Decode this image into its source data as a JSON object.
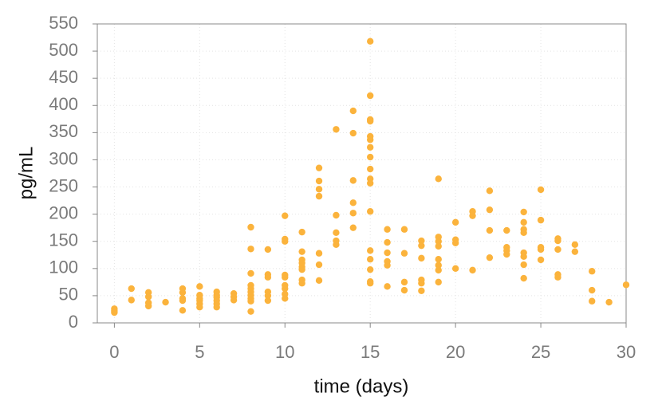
{
  "chart_data": {
    "type": "scatter",
    "x_label": "time (days)",
    "y_label": "pg/mL",
    "xlim": [
      -1,
      30
    ],
    "ylim": [
      0,
      550
    ],
    "xticks": [
      0,
      5,
      10,
      15,
      20,
      25,
      30
    ],
    "yticks": [
      0,
      50,
      100,
      150,
      200,
      250,
      300,
      350,
      400,
      450,
      500,
      550
    ],
    "grid": true,
    "series": [
      {
        "color": "#fbb33c",
        "x": [
          0,
          0,
          0,
          1,
          1,
          2,
          2,
          2,
          2,
          3,
          4,
          4,
          4,
          4,
          4,
          5,
          5,
          5,
          5,
          5,
          5,
          6,
          6,
          6,
          6,
          6,
          6,
          7,
          7,
          7,
          8,
          8,
          8,
          8,
          8,
          8,
          8,
          8,
          8,
          8,
          9,
          9,
          9,
          9,
          9,
          9,
          10,
          10,
          10,
          10,
          10,
          10,
          10,
          10,
          10,
          11,
          11,
          11,
          11,
          11,
          11,
          11,
          11,
          12,
          12,
          12,
          12,
          12,
          12,
          12,
          13,
          13,
          13,
          13,
          13,
          14,
          14,
          14,
          14,
          14,
          14,
          15,
          15,
          15,
          15,
          15,
          15,
          15,
          15,
          15,
          15,
          15,
          15,
          15,
          15,
          15,
          15,
          15,
          16,
          16,
          16,
          16,
          16,
          16,
          17,
          17,
          17,
          17,
          18,
          18,
          18,
          18,
          18,
          18,
          19,
          19,
          19,
          19,
          19,
          19,
          19,
          19,
          20,
          20,
          20,
          20,
          21,
          21,
          21,
          22,
          22,
          22,
          22,
          23,
          23,
          23,
          23,
          24,
          24,
          24,
          24,
          24,
          24,
          24,
          24,
          25,
          25,
          25,
          25,
          25,
          26,
          26,
          26,
          26,
          26,
          27,
          27,
          28,
          28,
          28,
          29,
          30
        ],
        "values": [
          26,
          22,
          19,
          63,
          42,
          56,
          48,
          37,
          31,
          38,
          63,
          56,
          45,
          41,
          23,
          67,
          51,
          45,
          41,
          35,
          29,
          57,
          51,
          47,
          41,
          35,
          29,
          54,
          48,
          42,
          176,
          136,
          91,
          69,
          63,
          57,
          51,
          45,
          40,
          21,
          135,
          89,
          84,
          57,
          50,
          41,
          197,
          154,
          150,
          88,
          84,
          69,
          63,
          53,
          45,
          167,
          131,
          116,
          110,
          103,
          98,
          79,
          73,
          285,
          261,
          246,
          233,
          128,
          107,
          78,
          356,
          198,
          166,
          151,
          144,
          390,
          349,
          262,
          221,
          202,
          175,
          518,
          418,
          374,
          371,
          343,
          337,
          323,
          305,
          283,
          265,
          257,
          205,
          133,
          117,
          98,
          76,
          73,
          172,
          148,
          129,
          113,
          106,
          67,
          172,
          128,
          75,
          60,
          151,
          142,
          119,
          79,
          73,
          59,
          265,
          158,
          150,
          141,
          117,
          106,
          97,
          75,
          185,
          153,
          147,
          100,
          205,
          197,
          97,
          243,
          208,
          170,
          120,
          170,
          139,
          133,
          126,
          204,
          185,
          172,
          166,
          129,
          122,
          107,
          82,
          245,
          189,
          139,
          135,
          116,
          155,
          151,
          135,
          89,
          84,
          144,
          131,
          95,
          60,
          40,
          38,
          70
        ]
      }
    ]
  }
}
